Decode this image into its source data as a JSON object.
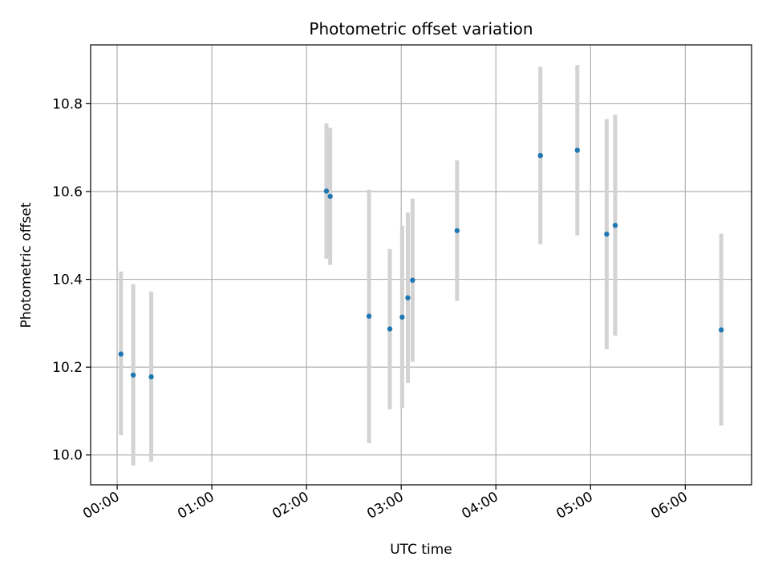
{
  "chart_data": {
    "type": "scatter",
    "title": "Photometric offset variation",
    "xlabel": "UTC time",
    "ylabel": "Photometric offset",
    "x_unit": "hours since 00:00 UTC",
    "xlim": [
      -0.28,
      6.7
    ],
    "ylim": [
      9.932,
      10.934
    ],
    "x_ticks": [
      0,
      1,
      2,
      3,
      4,
      5,
      6
    ],
    "x_tick_labels": [
      "00:00",
      "01:00",
      "02:00",
      "03:00",
      "04:00",
      "05:00",
      "06:00"
    ],
    "y_ticks": [
      10.0,
      10.2,
      10.4,
      10.6,
      10.8
    ],
    "y_tick_labels": [
      "10.0",
      "10.2",
      "10.4",
      "10.6",
      "10.8"
    ],
    "grid": true,
    "marker_color": "#1f77b4",
    "errorbar_color": "#d3d3d3",
    "points": [
      {
        "x": 0.04,
        "y": 10.23,
        "ylow": 10.045,
        "yhigh": 10.418
      },
      {
        "x": 0.17,
        "y": 10.182,
        "ylow": 9.976,
        "yhigh": 10.389
      },
      {
        "x": 0.36,
        "y": 10.178,
        "ylow": 9.985,
        "yhigh": 10.372
      },
      {
        "x": 2.21,
        "y": 10.601,
        "ylow": 10.447,
        "yhigh": 10.755
      },
      {
        "x": 2.25,
        "y": 10.589,
        "ylow": 10.433,
        "yhigh": 10.745
      },
      {
        "x": 2.66,
        "y": 10.316,
        "ylow": 10.027,
        "yhigh": 10.604
      },
      {
        "x": 2.88,
        "y": 10.287,
        "ylow": 10.104,
        "yhigh": 10.469
      },
      {
        "x": 3.01,
        "y": 10.314,
        "ylow": 10.107,
        "yhigh": 10.522
      },
      {
        "x": 3.07,
        "y": 10.358,
        "ylow": 10.164,
        "yhigh": 10.552
      },
      {
        "x": 3.12,
        "y": 10.398,
        "ylow": 10.212,
        "yhigh": 10.584
      },
      {
        "x": 3.59,
        "y": 10.511,
        "ylow": 10.351,
        "yhigh": 10.671
      },
      {
        "x": 4.47,
        "y": 10.682,
        "ylow": 10.48,
        "yhigh": 10.884
      },
      {
        "x": 4.86,
        "y": 10.694,
        "ylow": 10.5,
        "yhigh": 10.888
      },
      {
        "x": 5.17,
        "y": 10.503,
        "ylow": 10.241,
        "yhigh": 10.765
      },
      {
        "x": 5.26,
        "y": 10.523,
        "ylow": 10.272,
        "yhigh": 10.775
      },
      {
        "x": 6.38,
        "y": 10.285,
        "ylow": 10.067,
        "yhigh": 10.504
      }
    ]
  }
}
